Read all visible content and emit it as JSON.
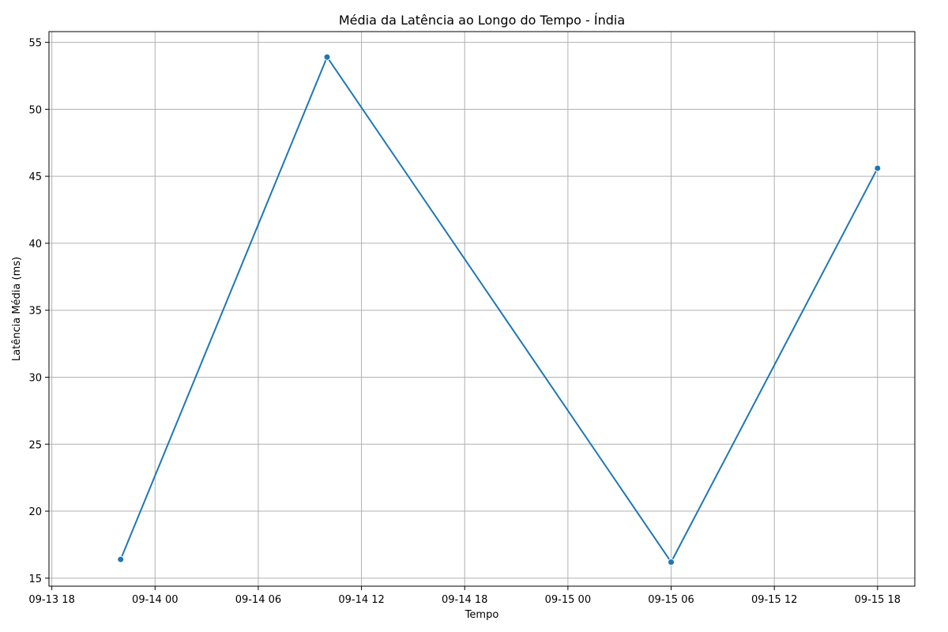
{
  "chart_data": {
    "type": "line",
    "title": "Média da Latência ao Longo do Tempo - Índia",
    "xlabel": "Tempo",
    "ylabel": "Latência Média (ms)",
    "x": [
      "2023-09-13 22:00",
      "2023-09-14 10:00",
      "2023-09-15 06:00",
      "2023-09-15 18:00"
    ],
    "series": [
      {
        "values": [
          16.4,
          53.9,
          16.2,
          45.6
        ],
        "color": "#1f77b4"
      }
    ],
    "xlim": [
      "2023-09-13 17:50",
      "2023-09-15 20:10"
    ],
    "ylim": [
      14.4,
      55.8
    ],
    "x_ticks": [
      "2023-09-13 18:00",
      "2023-09-14 00:00",
      "2023-09-14 06:00",
      "2023-09-14 12:00",
      "2023-09-14 18:00",
      "2023-09-15 00:00",
      "2023-09-15 06:00",
      "2023-09-15 12:00",
      "2023-09-15 18:00"
    ],
    "x_tick_labels": [
      "09-13 18",
      "09-14 00",
      "09-14 06",
      "09-14 12",
      "09-14 18",
      "09-15 00",
      "09-15 06",
      "09-15 12",
      "09-15 18"
    ],
    "y_ticks": [
      15,
      20,
      25,
      30,
      35,
      40,
      45,
      50,
      55
    ],
    "grid": true,
    "markers": true,
    "grid_color": "#b0b0b0"
  }
}
